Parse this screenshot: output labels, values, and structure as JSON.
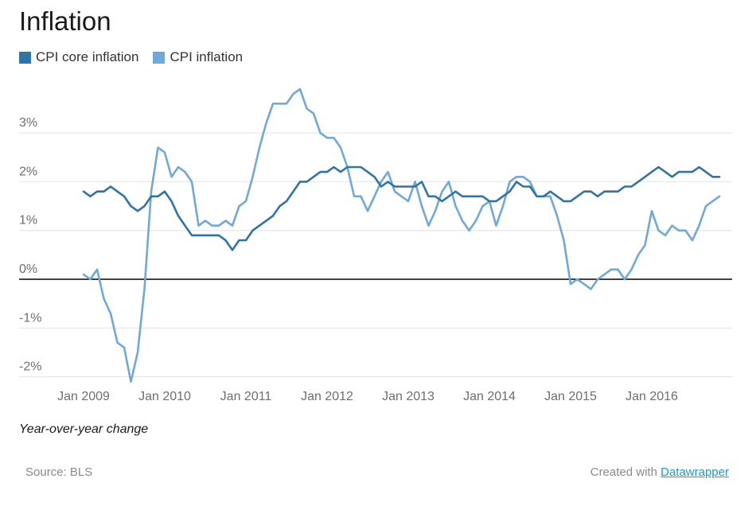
{
  "title": "Inflation",
  "note": "Year-over-year change",
  "source": "Source: BLS",
  "credit": {
    "prefix": "Created with ",
    "link": "Datawrapper"
  },
  "colors": {
    "core": "#2f74a8",
    "cpi": "#6fa9da",
    "zero_line": "#000000",
    "grid": "#e2e2e2"
  },
  "chart_data": {
    "type": "line",
    "title": "Inflation",
    "xlabel": "",
    "ylabel": "",
    "ylim": [
      -2.4,
      3.9
    ],
    "yticks": [
      {
        "value": 3,
        "label": "3%"
      },
      {
        "value": 2,
        "label": "2%"
      },
      {
        "value": 1,
        "label": "1%"
      },
      {
        "value": 0,
        "label": "0%"
      },
      {
        "value": -1,
        "label": "-1%"
      },
      {
        "value": -2,
        "label": "-2%"
      }
    ],
    "xticks": [
      "Jan 2009",
      "Jan 2010",
      "Jan 2011",
      "Jan 2012",
      "Jan 2013",
      "Jan 2014",
      "Jan 2015",
      "Jan 2016"
    ],
    "x_start": "Jan 2009",
    "x_end": "Oct 2016",
    "x_step": "month",
    "grid": true,
    "legend_position": "top-left",
    "series": [
      {
        "name": "CPI core inflation",
        "values": [
          1.8,
          1.7,
          1.8,
          1.8,
          1.9,
          1.8,
          1.7,
          1.5,
          1.4,
          1.5,
          1.7,
          1.7,
          1.8,
          1.6,
          1.3,
          1.1,
          0.9,
          0.9,
          0.9,
          0.9,
          0.9,
          0.8,
          0.6,
          0.8,
          0.8,
          1.0,
          1.1,
          1.2,
          1.3,
          1.5,
          1.6,
          1.8,
          2.0,
          2.0,
          2.1,
          2.2,
          2.2,
          2.3,
          2.2,
          2.3,
          2.3,
          2.3,
          2.2,
          2.1,
          1.9,
          2.0,
          1.9,
          1.9,
          1.9,
          1.9,
          2.0,
          1.7,
          1.7,
          1.6,
          1.7,
          1.8,
          1.7,
          1.7,
          1.7,
          1.7,
          1.6,
          1.6,
          1.7,
          1.8,
          2.0,
          1.9,
          1.9,
          1.7,
          1.7,
          1.8,
          1.7,
          1.6,
          1.6,
          1.7,
          1.8,
          1.8,
          1.7,
          1.8,
          1.8,
          1.8,
          1.9,
          1.9,
          2.0,
          2.1,
          2.2,
          2.3,
          2.2,
          2.1,
          2.2,
          2.2,
          2.2,
          2.3,
          2.2,
          2.1,
          2.1
        ]
      },
      {
        "name": "CPI inflation",
        "values": [
          0.1,
          0.0,
          0.2,
          -0.4,
          -0.7,
          -1.3,
          -1.4,
          -2.1,
          -1.5,
          -0.2,
          1.8,
          2.7,
          2.6,
          2.1,
          2.3,
          2.2,
          2.0,
          1.1,
          1.2,
          1.1,
          1.1,
          1.2,
          1.1,
          1.5,
          1.6,
          2.1,
          2.7,
          3.2,
          3.6,
          3.6,
          3.6,
          3.8,
          3.9,
          3.5,
          3.4,
          3.0,
          2.9,
          2.9,
          2.7,
          2.3,
          1.7,
          1.7,
          1.4,
          1.7,
          2.0,
          2.2,
          1.8,
          1.7,
          1.6,
          2.0,
          1.5,
          1.1,
          1.4,
          1.8,
          2.0,
          1.5,
          1.2,
          1.0,
          1.2,
          1.5,
          1.6,
          1.1,
          1.5,
          2.0,
          2.1,
          2.1,
          2.0,
          1.7,
          1.7,
          1.7,
          1.3,
          0.8,
          -0.1,
          0.0,
          -0.1,
          -0.2,
          0.0,
          0.1,
          0.2,
          0.2,
          0.0,
          0.2,
          0.5,
          0.7,
          1.4,
          1.0,
          0.9,
          1.1,
          1.0,
          1.0,
          0.8,
          1.1,
          1.5,
          1.6,
          1.7
        ]
      }
    ]
  }
}
